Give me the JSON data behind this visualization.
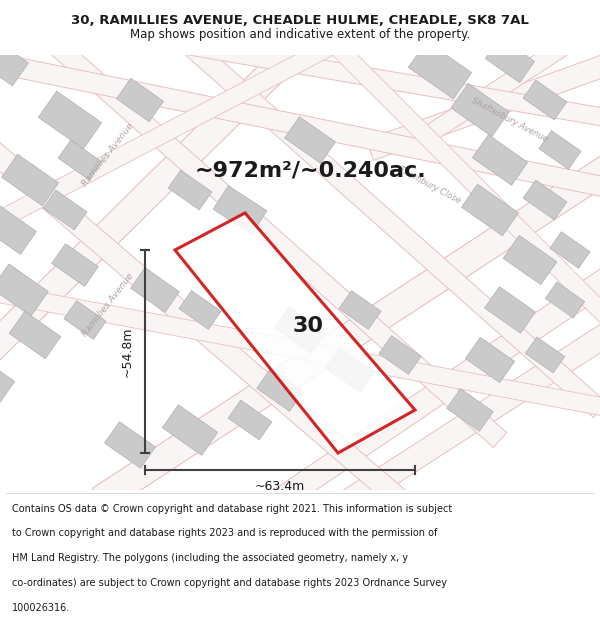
{
  "title_line1": "30, RAMILLIES AVENUE, CHEADLE HULME, CHEADLE, SK8 7AL",
  "title_line2": "Map shows position and indicative extent of the property.",
  "area_text": "~972m²/~0.240ac.",
  "plot_label": "30",
  "dim_width": "~63.4m",
  "dim_height": "~54.8m",
  "footer_lines": [
    "Contains OS data © Crown copyright and database right 2021. This information is subject",
    "to Crown copyright and database rights 2023 and is reproduced with the permission of",
    "HM Land Registry. The polygons (including the associated geometry, namely x, y",
    "co-ordinates) are subject to Crown copyright and database rights 2023 Ordnance Survey",
    "100026316."
  ],
  "map_bg": "#f2f0ed",
  "road_fill": "#faf5f5",
  "road_edge": "#e8c0c0",
  "building_fill": "#cacaca",
  "building_edge": "#b0b0b0",
  "plot_polygon_color": "#cc0000",
  "plot_polygon_fill": "#ffffff",
  "dim_line_color": "#404040",
  "title_bg": "#ffffff",
  "footer_bg": "#ffffff"
}
